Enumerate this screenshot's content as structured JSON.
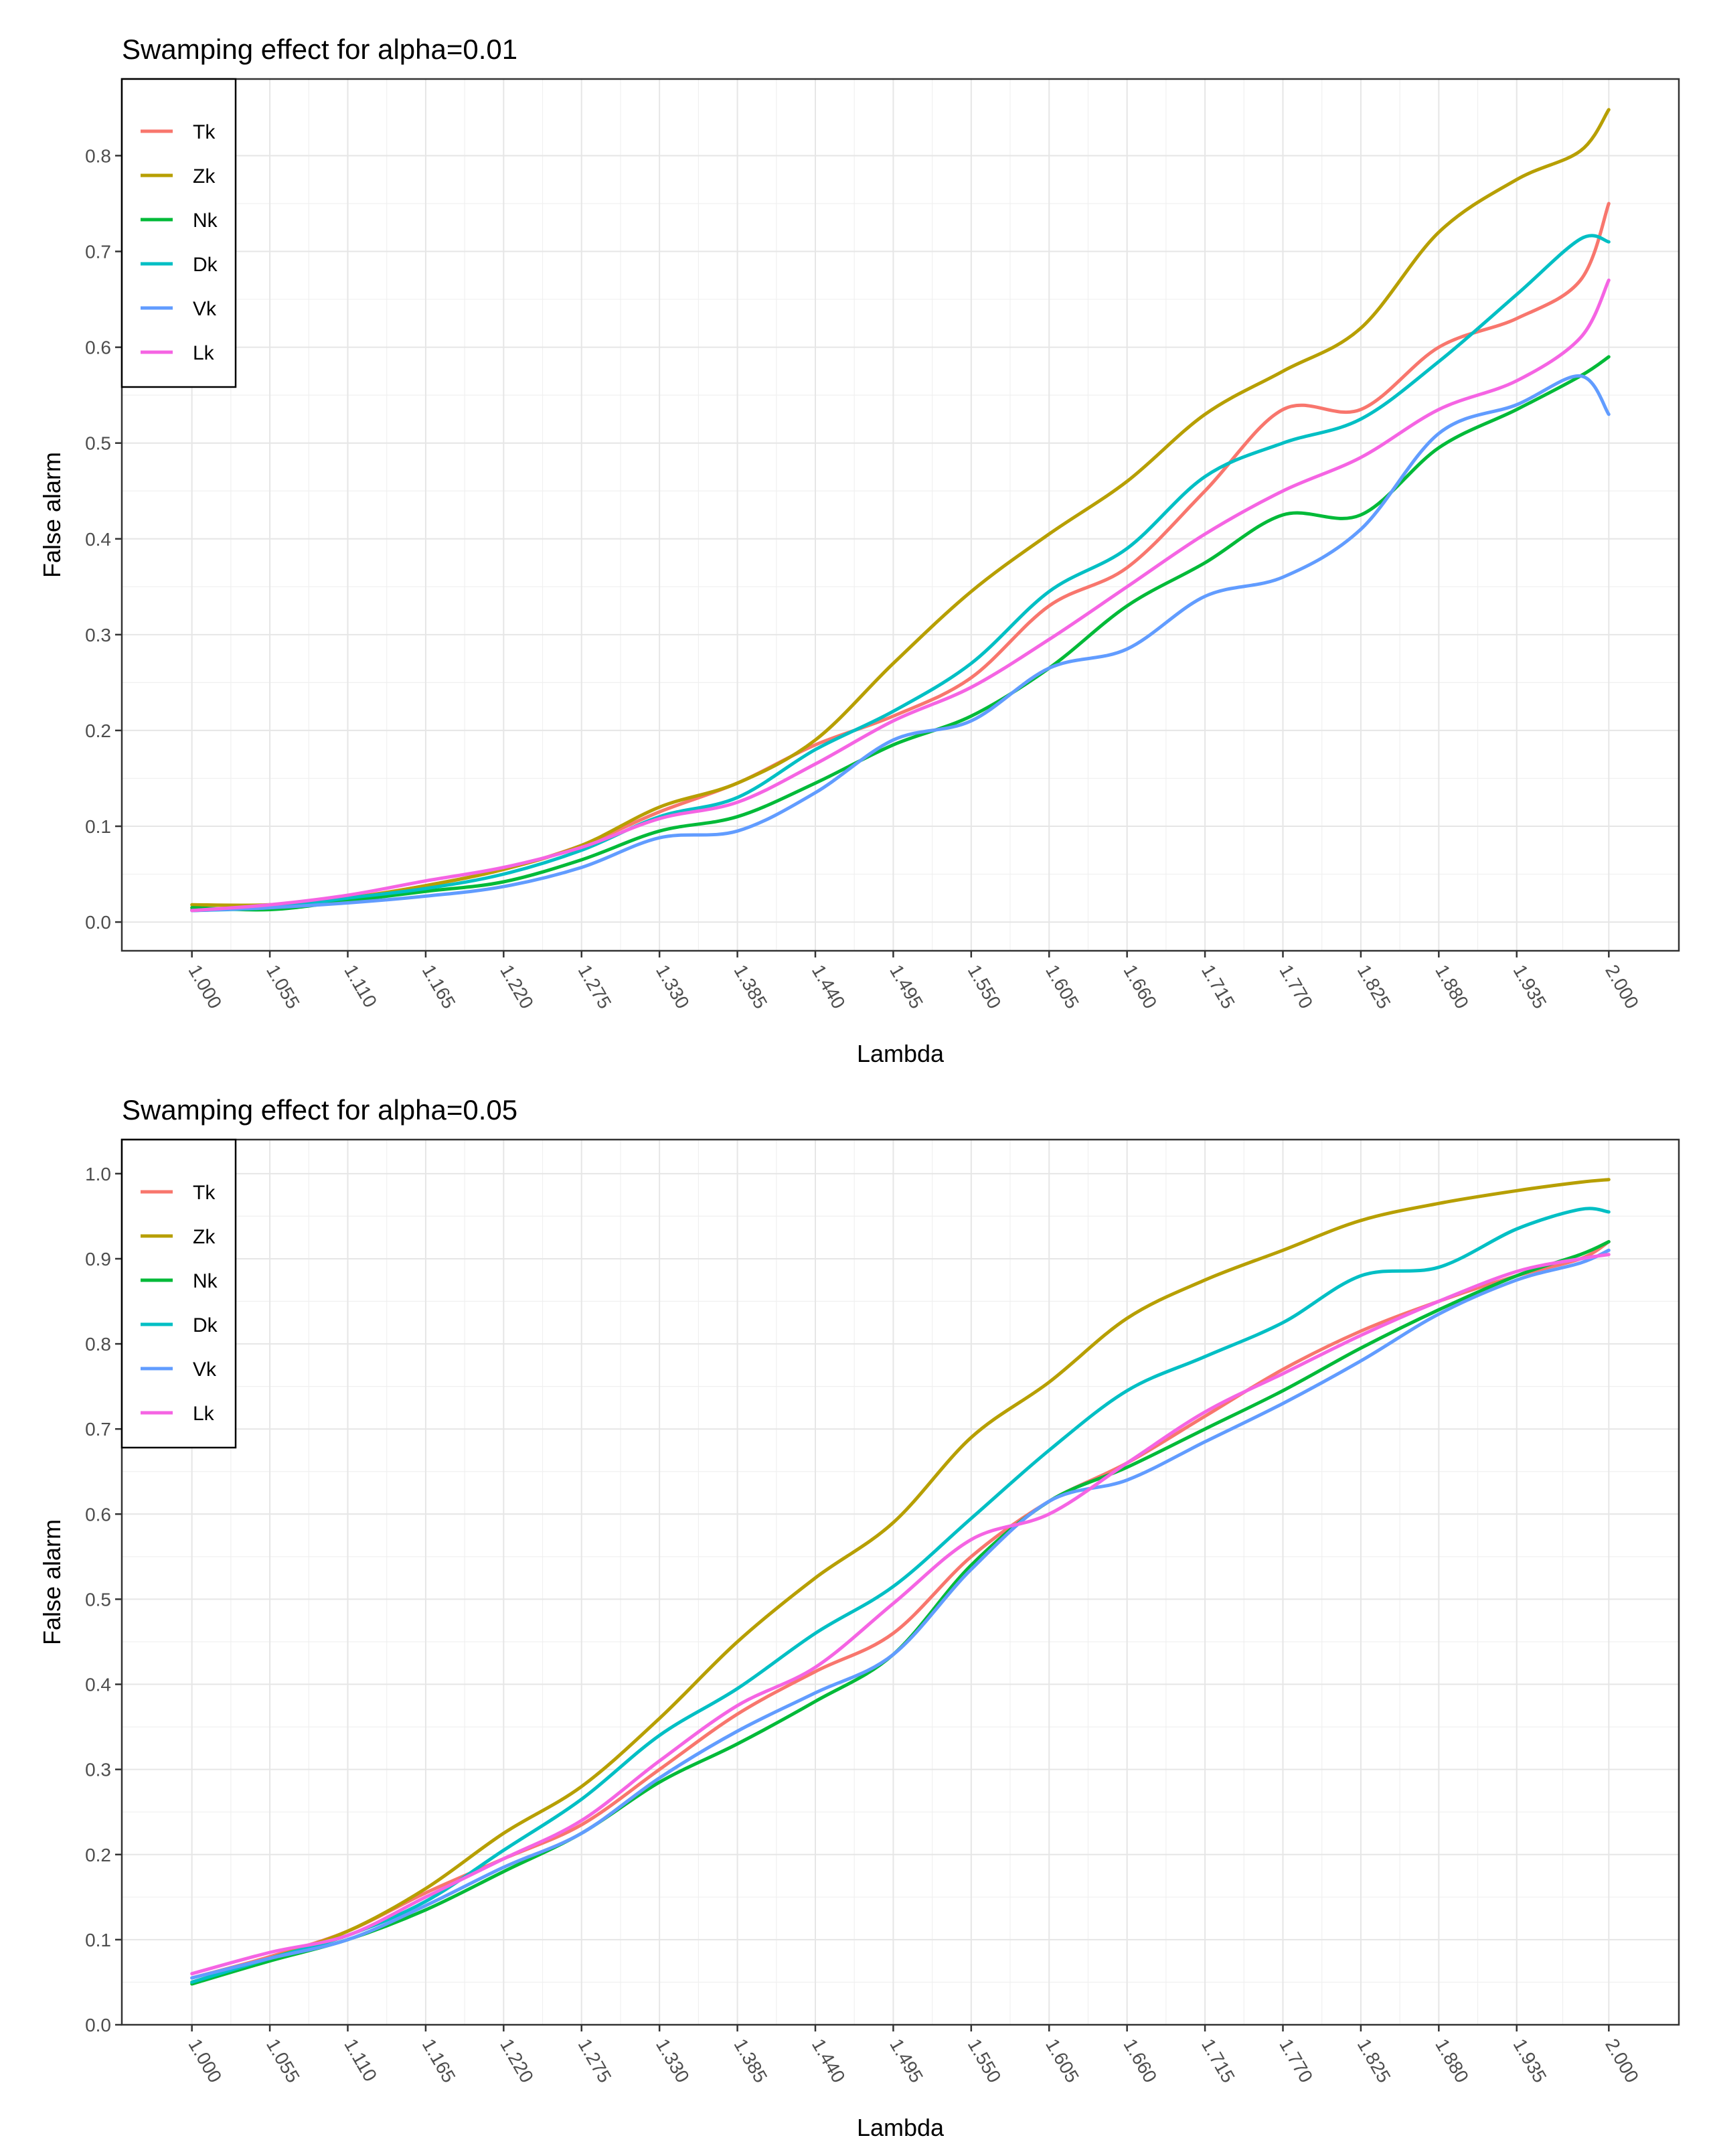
{
  "chart_data": [
    {
      "type": "line",
      "title": "Swamping effect for alpha=0.01",
      "xlabel": "Lambda",
      "ylabel": "False alarm",
      "xlim": [
        1.0,
        2.0
      ],
      "ylim": [
        -0.03,
        0.88
      ],
      "yticks": [
        0.0,
        0.1,
        0.2,
        0.3,
        0.4,
        0.5,
        0.6,
        0.7,
        0.8
      ],
      "ytick_labels": [
        "0.0",
        "0.1",
        "0.2",
        "0.3",
        "0.4",
        "0.5",
        "0.6",
        "0.7",
        "0.8"
      ],
      "xticks": [
        1.0,
        1.055,
        1.11,
        1.165,
        1.22,
        1.275,
        1.33,
        1.385,
        1.44,
        1.495,
        1.55,
        1.605,
        1.66,
        1.715,
        1.77,
        1.825,
        1.88,
        1.935,
        2.0
      ],
      "xtick_labels": [
        "1.000",
        "1.055",
        "1.110",
        "1.165",
        "1.220",
        "1.275",
        "1.330",
        "1.385",
        "1.440",
        "1.495",
        "1.550",
        "1.605",
        "1.660",
        "1.715",
        "1.770",
        "1.825",
        "1.880",
        "1.935",
        "2.000"
      ],
      "grid": true,
      "legend": "top-left",
      "x": [
        1.0,
        1.055,
        1.11,
        1.165,
        1.22,
        1.275,
        1.33,
        1.385,
        1.44,
        1.495,
        1.55,
        1.605,
        1.66,
        1.715,
        1.77,
        1.825,
        1.88,
        1.935,
        1.98,
        2.0
      ],
      "series": [
        {
          "name": "Tk",
          "color": "#F8766D",
          "values": [
            0.013,
            0.015,
            0.025,
            0.038,
            0.055,
            0.08,
            0.115,
            0.145,
            0.185,
            0.215,
            0.255,
            0.33,
            0.37,
            0.45,
            0.535,
            0.535,
            0.6,
            0.63,
            0.67,
            0.75
          ]
        },
        {
          "name": "Zk",
          "color": "#B79F00",
          "values": [
            0.018,
            0.018,
            0.025,
            0.038,
            0.055,
            0.08,
            0.12,
            0.145,
            0.19,
            0.27,
            0.345,
            0.405,
            0.46,
            0.53,
            0.575,
            0.62,
            0.72,
            0.775,
            0.805,
            0.848
          ]
        },
        {
          "name": "Nk",
          "color": "#00BA38",
          "values": [
            0.015,
            0.013,
            0.022,
            0.032,
            0.042,
            0.065,
            0.095,
            0.11,
            0.145,
            0.185,
            0.215,
            0.265,
            0.33,
            0.375,
            0.425,
            0.425,
            0.495,
            0.535,
            0.57,
            0.59
          ]
        },
        {
          "name": "Dk",
          "color": "#00BFC4",
          "values": [
            0.012,
            0.015,
            0.025,
            0.035,
            0.05,
            0.075,
            0.11,
            0.13,
            0.18,
            0.22,
            0.27,
            0.345,
            0.39,
            0.465,
            0.5,
            0.525,
            0.585,
            0.655,
            0.713,
            0.71
          ]
        },
        {
          "name": "Vk",
          "color": "#619CFF",
          "values": [
            0.012,
            0.015,
            0.02,
            0.027,
            0.037,
            0.057,
            0.088,
            0.095,
            0.135,
            0.19,
            0.21,
            0.265,
            0.285,
            0.34,
            0.36,
            0.41,
            0.51,
            0.54,
            0.57,
            0.53
          ]
        },
        {
          "name": "Lk",
          "color": "#F564E3",
          "values": [
            0.012,
            0.018,
            0.028,
            0.043,
            0.057,
            0.078,
            0.108,
            0.125,
            0.165,
            0.21,
            0.245,
            0.295,
            0.35,
            0.405,
            0.45,
            0.485,
            0.535,
            0.565,
            0.61,
            0.67
          ]
        }
      ]
    },
    {
      "type": "line",
      "title": "Swamping effect for alpha=0.05",
      "xlabel": "Lambda",
      "ylabel": "False alarm",
      "xlim": [
        1.0,
        2.0
      ],
      "ylim": [
        0.0,
        1.04
      ],
      "yticks": [
        0.0,
        0.1,
        0.2,
        0.3,
        0.4,
        0.5,
        0.6,
        0.7,
        0.8,
        0.9,
        1.0
      ],
      "ytick_labels": [
        "0.0",
        "0.1",
        "0.2",
        "0.3",
        "0.4",
        "0.5",
        "0.6",
        "0.7",
        "0.8",
        "0.9",
        "1.0"
      ],
      "xticks": [
        1.0,
        1.055,
        1.11,
        1.165,
        1.22,
        1.275,
        1.33,
        1.385,
        1.44,
        1.495,
        1.55,
        1.605,
        1.66,
        1.715,
        1.77,
        1.825,
        1.88,
        1.935,
        2.0
      ],
      "xtick_labels": [
        "1.000",
        "1.055",
        "1.110",
        "1.165",
        "1.220",
        "1.275",
        "1.330",
        "1.385",
        "1.440",
        "1.495",
        "1.550",
        "1.605",
        "1.660",
        "1.715",
        "1.770",
        "1.825",
        "1.880",
        "1.935",
        "2.000"
      ],
      "grid": true,
      "legend": "top-left",
      "x": [
        1.0,
        1.055,
        1.11,
        1.165,
        1.22,
        1.275,
        1.33,
        1.385,
        1.44,
        1.495,
        1.55,
        1.605,
        1.66,
        1.715,
        1.77,
        1.825,
        1.88,
        1.935,
        1.98,
        2.0
      ],
      "series": [
        {
          "name": "Tk",
          "color": "#F8766D",
          "values": [
            0.055,
            0.08,
            0.11,
            0.155,
            0.195,
            0.235,
            0.3,
            0.365,
            0.415,
            0.46,
            0.55,
            0.615,
            0.66,
            0.715,
            0.77,
            0.815,
            0.85,
            0.88,
            0.9,
            0.92
          ]
        },
        {
          "name": "Zk",
          "color": "#B79F00",
          "values": [
            0.05,
            0.078,
            0.11,
            0.16,
            0.225,
            0.28,
            0.36,
            0.45,
            0.525,
            0.59,
            0.69,
            0.755,
            0.83,
            0.875,
            0.91,
            0.945,
            0.965,
            0.98,
            0.99,
            0.993
          ]
        },
        {
          "name": "Nk",
          "color": "#00BA38",
          "values": [
            0.048,
            0.075,
            0.1,
            0.135,
            0.18,
            0.225,
            0.285,
            0.33,
            0.38,
            0.435,
            0.54,
            0.615,
            0.655,
            0.7,
            0.745,
            0.795,
            0.84,
            0.88,
            0.905,
            0.92
          ]
        },
        {
          "name": "Dk",
          "color": "#00BFC4",
          "values": [
            0.05,
            0.078,
            0.105,
            0.145,
            0.205,
            0.265,
            0.34,
            0.395,
            0.46,
            0.515,
            0.595,
            0.675,
            0.745,
            0.785,
            0.825,
            0.88,
            0.89,
            0.935,
            0.958,
            0.955
          ]
        },
        {
          "name": "Vk",
          "color": "#619CFF",
          "values": [
            0.055,
            0.078,
            0.1,
            0.14,
            0.185,
            0.225,
            0.29,
            0.345,
            0.39,
            0.435,
            0.535,
            0.615,
            0.64,
            0.685,
            0.73,
            0.78,
            0.835,
            0.875,
            0.895,
            0.91
          ]
        },
        {
          "name": "Lk",
          "color": "#F564E3",
          "values": [
            0.06,
            0.085,
            0.105,
            0.15,
            0.195,
            0.24,
            0.31,
            0.375,
            0.42,
            0.495,
            0.57,
            0.6,
            0.66,
            0.72,
            0.765,
            0.81,
            0.85,
            0.885,
            0.9,
            0.905
          ]
        }
      ]
    }
  ]
}
